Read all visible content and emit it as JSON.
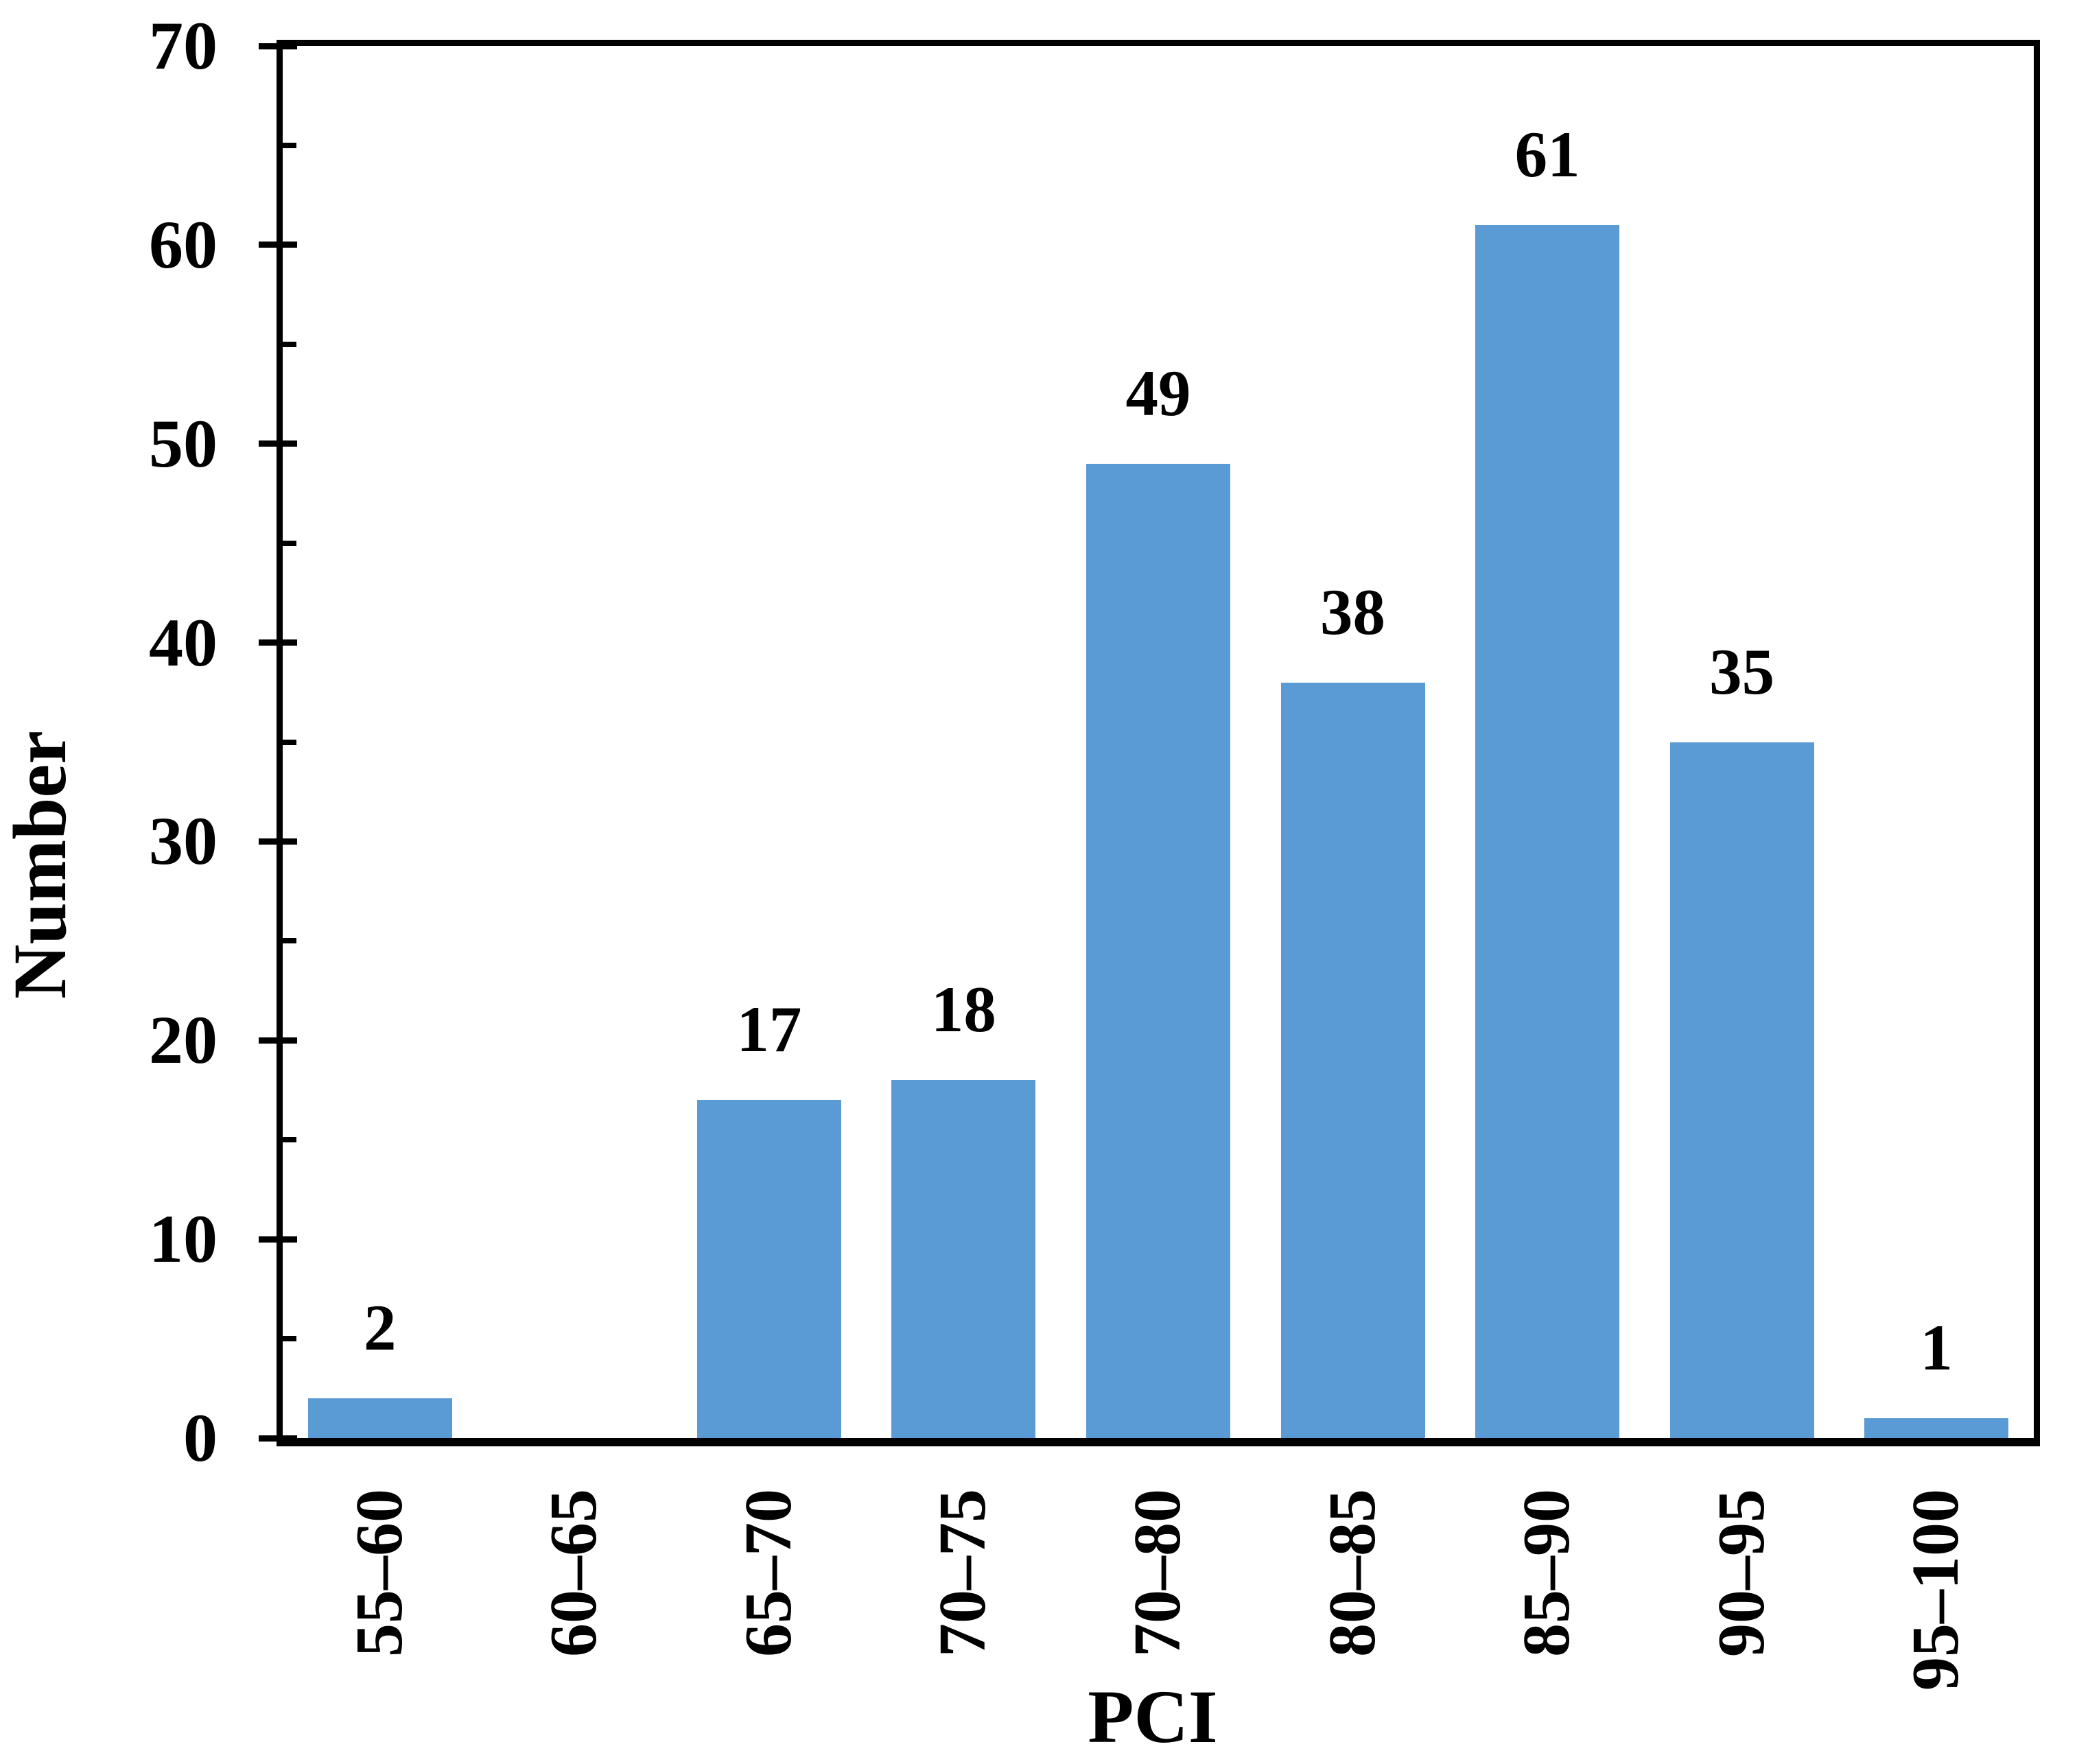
{
  "colors": {
    "bar": "#5B9BD5",
    "axis": "#000000",
    "text": "#000000",
    "background": "#FFFFFF"
  },
  "chart_data": {
    "type": "bar",
    "title": "",
    "xlabel": "PCI",
    "ylabel": "Number",
    "categories": [
      "55–60",
      "60–65",
      "65–70",
      "70–75",
      "70–80",
      "80–85",
      "85–90",
      "90–95",
      "95–100"
    ],
    "values": [
      2,
      0,
      17,
      18,
      49,
      38,
      61,
      35,
      1
    ],
    "bar_labels": [
      "2",
      "",
      "17",
      "18",
      "49",
      "38",
      "61",
      "35",
      "1"
    ],
    "ylim": [
      0,
      70
    ],
    "y_major_ticks": [
      0,
      10,
      20,
      30,
      40,
      50,
      60,
      70
    ],
    "y_minor_ticks": [
      5,
      15,
      25,
      35,
      45,
      55,
      65
    ],
    "grid": "off",
    "legend": "none",
    "bar_color": "#5B9BD5",
    "gap_ratio": 0.26
  }
}
